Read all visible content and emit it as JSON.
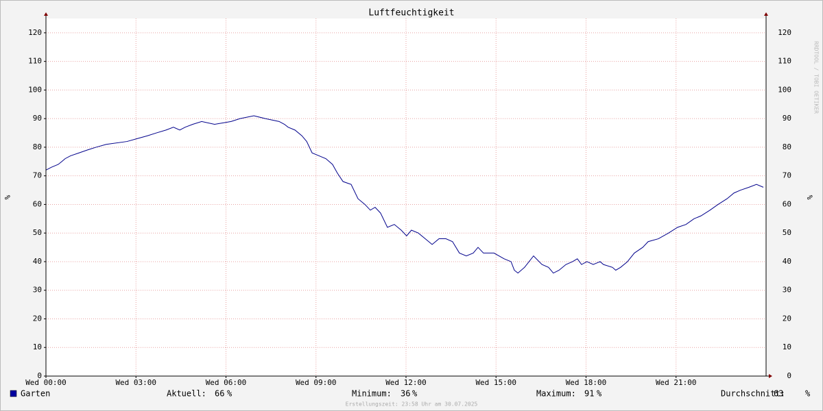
{
  "chart_data": {
    "type": "line",
    "title": "Luftfeuchtigkeit",
    "y_label": "%",
    "y2_label": "%",
    "watermark": "RRDTOOL / TOBI OETIKER",
    "footer": "Erstellungszeit: 23:58 Uhr am 30.07.2025",
    "xlim": [
      0,
      24
    ],
    "xticks": [
      {
        "value": 0,
        "label": "Wed 00:00"
      },
      {
        "value": 3,
        "label": "Wed 03:00"
      },
      {
        "value": 6,
        "label": "Wed 06:00"
      },
      {
        "value": 9,
        "label": "Wed 09:00"
      },
      {
        "value": 12,
        "label": "Wed 12:00"
      },
      {
        "value": 15,
        "label": "Wed 15:00"
      },
      {
        "value": 18,
        "label": "Wed 18:00"
      },
      {
        "value": 21,
        "label": "Wed 21:00"
      }
    ],
    "ylim": [
      0,
      125
    ],
    "yticks": [
      0,
      10,
      20,
      30,
      40,
      50,
      60,
      70,
      80,
      90,
      100,
      110,
      120
    ],
    "grid": true,
    "x": [
      0,
      0.18,
      0.41,
      0.53,
      0.64,
      0.82,
      1.1,
      1.37,
      1.67,
      2.01,
      2.7,
      3.04,
      3.38,
      3.68,
      4,
      4.25,
      4.46,
      4.64,
      4.89,
      5.19,
      5.62,
      6.17,
      6.47,
      6.93,
      7.31,
      7.77,
      7.95,
      8.07,
      8.3,
      8.53,
      8.69,
      8.87,
      9.1,
      9.33,
      9.55,
      9.71,
      9.9,
      10.17,
      10.4,
      10.63,
      10.81,
      10.97,
      11.15,
      11.38,
      11.61,
      11.84,
      12.02,
      12.18,
      12.41,
      12.64,
      12.87,
      13.1,
      13.33,
      13.55,
      13.78,
      14.01,
      14.24,
      14.4,
      14.58,
      14.93,
      15.27,
      15.5,
      15.61,
      15.73,
      15.95,
      16.25,
      16.53,
      16.75,
      16.91,
      17.1,
      17.33,
      17.55,
      17.71,
      17.85,
      18.03,
      18.24,
      18.47,
      18.58,
      18.88,
      18.99,
      19.15,
      19.38,
      19.61,
      19.89,
      20.07,
      20.41,
      20.75,
      21.05,
      21.33,
      21.6,
      21.83,
      22.13,
      22.4,
      22.7,
      22.93,
      23.15,
      23.43,
      23.68,
      23.91
    ],
    "series": [
      {
        "name": "Garten",
        "color": "#00008b",
        "legend_color": "#0000a0",
        "values": [
          72,
          73,
          74,
          75,
          76,
          77,
          78,
          79,
          80,
          81,
          82,
          83,
          84,
          85,
          86,
          87,
          86,
          87,
          88,
          89,
          88,
          89,
          90,
          91,
          90,
          89,
          88,
          87,
          86,
          84,
          82,
          78,
          77,
          76,
          74,
          71,
          68,
          67,
          62,
          60,
          58,
          59,
          57,
          52,
          53,
          51,
          49,
          51,
          50,
          48,
          46,
          48,
          48,
          47,
          43,
          42,
          43,
          45,
          43,
          43,
          41,
          40,
          37,
          36,
          38,
          42,
          39,
          38,
          36,
          37,
          39,
          40,
          41,
          39,
          40,
          39,
          40,
          39,
          38,
          37,
          38,
          40,
          43,
          45,
          47,
          48,
          50,
          52,
          53,
          55,
          56,
          58,
          60,
          62,
          64,
          65,
          66,
          67,
          66
        ]
      }
    ],
    "stats": [
      {
        "label": "Aktuell:",
        "value": 66,
        "unit": "%"
      },
      {
        "label": "Minimum:",
        "value": 36,
        "unit": "%"
      },
      {
        "label": "Maximum:",
        "value": 91,
        "unit": "%"
      },
      {
        "label": "Durchschnitt:",
        "value": 63,
        "unit": "%"
      }
    ]
  }
}
